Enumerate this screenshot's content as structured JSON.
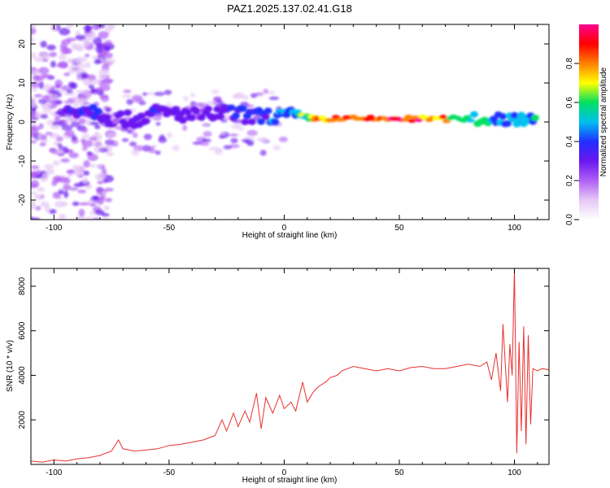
{
  "title": "PAZ1.2025.137.02.41.G18",
  "colors": {
    "snr_line": "#e8302f",
    "spectral_palette": [
      "#ffffff",
      "#e6c8f5",
      "#b060f5",
      "#6a18f0",
      "#2030ff",
      "#00c0f0",
      "#00e060",
      "#ffff00",
      "#ff8000",
      "#ff0000",
      "#ff0090"
    ]
  },
  "chart_data": [
    {
      "type": "heatmap",
      "title": "",
      "xlabel": "Height of straight line (km)",
      "ylabel": "Frequency (Hz)",
      "xlim": [
        -110,
        115
      ],
      "ylim": [
        -25,
        25
      ],
      "x_ticks": [
        -100,
        -50,
        0,
        50,
        100
      ],
      "x_tick_labels": [
        "-100",
        "-50",
        "0",
        "50",
        "100"
      ],
      "y_ticks": [
        -20,
        -10,
        0,
        10,
        20
      ],
      "y_tick_labels": [
        "-20",
        "-10",
        "0",
        "10",
        "20"
      ],
      "colorbar": {
        "label": "Normalized spectral amplitude",
        "range": [
          0,
          1
        ],
        "ticks": [
          0.0,
          0.2,
          0.4,
          0.6,
          0.8
        ],
        "tick_labels": [
          "0.0",
          "0.2",
          "0.4",
          "0.6",
          "0.8"
        ]
      },
      "ridge": [
        {
          "x": -95,
          "freq": 3.0,
          "amp": 0.3
        },
        {
          "x": -85,
          "freq": 3.5,
          "amp": 0.4
        },
        {
          "x": -75,
          "freq": 1.0,
          "amp": 0.3
        },
        {
          "x": -65,
          "freq": 0.5,
          "amp": 0.3
        },
        {
          "x": -55,
          "freq": 2.5,
          "amp": 0.35
        },
        {
          "x": -45,
          "freq": 2.0,
          "amp": 0.3
        },
        {
          "x": -35,
          "freq": 1.5,
          "amp": 0.3
        },
        {
          "x": -25,
          "freq": 2.5,
          "amp": 0.35
        },
        {
          "x": -15,
          "freq": 1.5,
          "amp": 0.35
        },
        {
          "x": -5,
          "freq": 1.5,
          "amp": 0.45
        },
        {
          "x": 5,
          "freq": 1.5,
          "amp": 0.5
        },
        {
          "x": 15,
          "freq": 0.8,
          "amp": 0.85
        },
        {
          "x": 30,
          "freq": 0.8,
          "amp": 0.95
        },
        {
          "x": 45,
          "freq": 0.8,
          "amp": 0.9
        },
        {
          "x": 60,
          "freq": 0.8,
          "amp": 0.9
        },
        {
          "x": 75,
          "freq": 0.8,
          "amp": 0.7
        },
        {
          "x": 90,
          "freq": 0.8,
          "amp": 0.5
        },
        {
          "x": 100,
          "freq": 1.0,
          "amp": 0.45
        },
        {
          "x": 110,
          "freq": 1.5,
          "amp": 0.55
        }
      ]
    },
    {
      "type": "line",
      "title": "",
      "xlabel": "Height of straight line (km)",
      "ylabel": "SNR (10 * v/v)",
      "xlim": [
        -110,
        115
      ],
      "ylim": [
        0,
        8800
      ],
      "x_ticks": [
        -100,
        -50,
        0,
        50,
        100
      ],
      "x_tick_labels": [
        "-100",
        "-50",
        "0",
        "50",
        "100"
      ],
      "y_ticks": [
        2000,
        4000,
        6000,
        8000
      ],
      "y_tick_labels": [
        "2000",
        "4000",
        "6000",
        "8000"
      ],
      "series": [
        {
          "x": [
            -110,
            -105,
            -100,
            -95,
            -90,
            -85,
            -80,
            -75,
            -72,
            -70,
            -65,
            -60,
            -55,
            -50,
            -45,
            -40,
            -35,
            -30,
            -27,
            -25,
            -22,
            -20,
            -17,
            -15,
            -12,
            -10,
            -8,
            -5,
            -2,
            0,
            3,
            5,
            8,
            10,
            13,
            15,
            18,
            20,
            23,
            25,
            30,
            35,
            40,
            45,
            50,
            55,
            60,
            65,
            70,
            75,
            80,
            85,
            88,
            90,
            92,
            94,
            95,
            97,
            98,
            99,
            100,
            101,
            102,
            103,
            104,
            105,
            106,
            107,
            108,
            110,
            112,
            115
          ],
          "y": [
            150,
            100,
            200,
            150,
            250,
            300,
            400,
            600,
            1100,
            700,
            600,
            650,
            700,
            850,
            900,
            1000,
            1100,
            1300,
            2000,
            1500,
            2300,
            1700,
            2400,
            1900,
            3200,
            1600,
            3000,
            2300,
            3100,
            2500,
            2800,
            2400,
            3700,
            2800,
            3300,
            3500,
            3700,
            3900,
            4000,
            4200,
            4400,
            4300,
            4200,
            4300,
            4200,
            4350,
            4400,
            4300,
            4300,
            4400,
            4500,
            4400,
            4600,
            3800,
            5000,
            3300,
            6300,
            2800,
            5400,
            4000,
            8800,
            500,
            5500,
            1500,
            6200,
            900,
            5800,
            1800,
            4300,
            4200,
            4300,
            4250
          ]
        }
      ]
    }
  ]
}
